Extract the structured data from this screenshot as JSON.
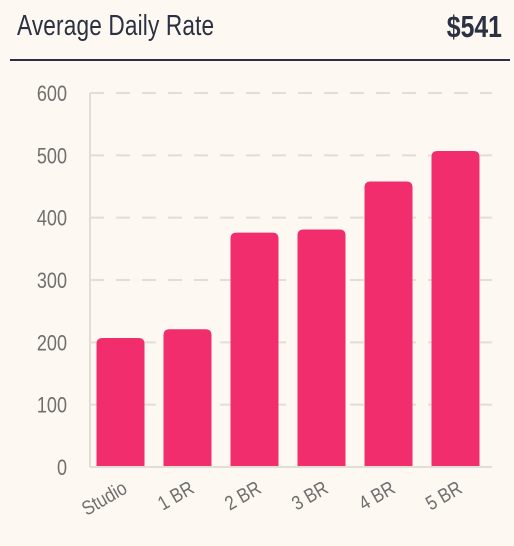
{
  "header": {
    "title": "Average Daily Rate",
    "kpi_value": "$541"
  },
  "colors": {
    "background": "#fdf8f1",
    "bar": "#f22d6e",
    "text_dark": "#2b3142",
    "text_muted": "#6f6f6f",
    "grid": "#e2ddd6"
  },
  "chart_data": {
    "type": "bar",
    "categories": [
      "Studio",
      "1 BR",
      "2 BR",
      "3 BR",
      "4 BR",
      "5 BR"
    ],
    "values": [
      207,
      221,
      376,
      381,
      458,
      507
    ],
    "title": "",
    "xlabel": "",
    "ylabel": "",
    "ylim": [
      0,
      600
    ],
    "yticks": [
      0,
      100,
      200,
      300,
      400,
      500,
      600
    ],
    "grid": true,
    "legend": "none"
  }
}
